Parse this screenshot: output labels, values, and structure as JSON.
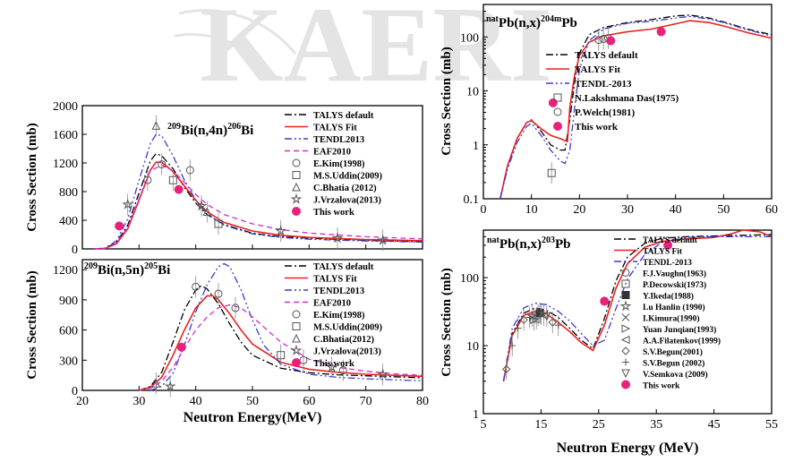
{
  "watermark": "KAERI",
  "watermark_color": "#e4e4e4",
  "chart_data": [
    {
      "id": "bi4n",
      "type": "line",
      "title_parts": [
        "209",
        "Bi(n,4n)",
        "206",
        "Bi"
      ],
      "xlabel": "",
      "ylabel": "Cross Section (mb)",
      "xlim": [
        20,
        80
      ],
      "ylim": [
        0,
        2000
      ],
      "xticks": [
        20,
        30,
        40,
        50,
        60,
        70,
        80
      ],
      "yticks": [
        0,
        400,
        800,
        1200,
        1600,
        2000
      ],
      "show_xticklabels": false,
      "series": [
        {
          "name": "TALYS default",
          "style": "dashdot",
          "color": "#000000",
          "x": [
            22,
            24,
            26,
            28,
            30,
            32,
            33,
            34,
            36,
            38,
            40,
            42,
            45,
            50,
            55,
            60,
            70,
            80
          ],
          "y": [
            0,
            10,
            90,
            330,
            780,
            1230,
            1330,
            1300,
            1120,
            860,
            640,
            480,
            340,
            220,
            170,
            150,
            120,
            100
          ]
        },
        {
          "name": "TALYS Fit",
          "style": "solid",
          "color": "#e8221f",
          "x": [
            22,
            24,
            26,
            28,
            30,
            32,
            33,
            34,
            36,
            38,
            40,
            42,
            45,
            50,
            55,
            60,
            70,
            80
          ],
          "y": [
            0,
            8,
            70,
            280,
            680,
            1100,
            1210,
            1210,
            1080,
            880,
            680,
            520,
            370,
            250,
            190,
            160,
            130,
            115
          ]
        },
        {
          "name": "TENDL2013",
          "style": "dashdotdot",
          "color": "#3b3bd0",
          "x": [
            22,
            24,
            26,
            28,
            30,
            32,
            33,
            34,
            36,
            38,
            40,
            42,
            45,
            50,
            55,
            60,
            70,
            80
          ],
          "y": [
            0,
            12,
            110,
            420,
            960,
            1470,
            1600,
            1580,
            1300,
            960,
            680,
            490,
            330,
            210,
            160,
            135,
            110,
            95
          ]
        },
        {
          "name": "EAF2010",
          "style": "dash",
          "color": "#d12ad1",
          "x": [
            22,
            24,
            26,
            28,
            30,
            32,
            34,
            36,
            38,
            40,
            42,
            45,
            50,
            55,
            60,
            70,
            80
          ],
          "y": [
            0,
            8,
            80,
            300,
            700,
            1090,
            1170,
            1090,
            930,
            760,
            620,
            480,
            350,
            270,
            220,
            170,
            140
          ]
        }
      ],
      "points": [
        {
          "label": "E.Kim(1998)",
          "marker": "circle",
          "color": "#555555",
          "x": [
            31.5,
            34,
            39
          ],
          "y": [
            960,
            1180,
            1100
          ]
        },
        {
          "label": "M.S.Uddin(2009)",
          "marker": "square",
          "color": "#555555",
          "x": [
            36,
            44
          ],
          "y": [
            960,
            350
          ]
        },
        {
          "label": "C.Bhatia (2012)",
          "marker": "triangle",
          "color": "#555555",
          "x": [
            33,
            42
          ],
          "y": [
            1720,
            520
          ]
        },
        {
          "label": "J.Vrzalova(2013)",
          "marker": "star",
          "color": "#555555",
          "x": [
            28,
            41,
            55,
            65,
            73
          ],
          "y": [
            620,
            600,
            250,
            150,
            120
          ]
        },
        {
          "label": "This work",
          "marker": "dot",
          "color": "#e8227a",
          "x": [
            26.5,
            37
          ],
          "y": [
            320,
            830
          ]
        }
      ]
    },
    {
      "id": "bi5n",
      "type": "line",
      "title_parts": [
        "209",
        "Bi(n,5n)",
        "205",
        "Bi"
      ],
      "xlabel": "Neutron Energy(MeV)",
      "ylabel": "Cross Section (mb)",
      "xlim": [
        20,
        80
      ],
      "ylim": [
        0,
        1300
      ],
      "xticks": [
        20,
        30,
        40,
        50,
        60,
        70,
        80
      ],
      "yticks": [
        0,
        300,
        600,
        900,
        1200
      ],
      "show_xticklabels": true,
      "series": [
        {
          "name": "TALYS default",
          "style": "dashdot",
          "color": "#000000",
          "x": [
            30,
            32,
            34,
            36,
            38,
            40,
            41,
            42,
            44,
            46,
            48,
            50,
            55,
            60,
            65,
            70,
            75,
            80
          ],
          "y": [
            0,
            40,
            180,
            480,
            800,
            1000,
            1040,
            1010,
            860,
            660,
            480,
            350,
            220,
            175,
            155,
            145,
            135,
            125
          ]
        },
        {
          "name": "TALYS Fit",
          "style": "solid",
          "color": "#e8221f",
          "x": [
            30,
            32,
            34,
            36,
            38,
            40,
            42,
            43,
            44,
            46,
            48,
            50,
            55,
            60,
            65,
            70,
            75,
            80
          ],
          "y": [
            0,
            30,
            130,
            350,
            600,
            820,
            940,
            940,
            900,
            760,
            600,
            460,
            280,
            210,
            180,
            160,
            150,
            140
          ]
        },
        {
          "name": "TENDL2013",
          "style": "dashdotdot",
          "color": "#3b3bd0",
          "x": [
            32,
            34,
            36,
            38,
            40,
            42,
            44,
            45,
            46,
            48,
            50,
            52,
            55,
            60,
            65,
            70,
            75,
            80
          ],
          "y": [
            0,
            40,
            170,
            450,
            780,
            1050,
            1230,
            1260,
            1230,
            1000,
            700,
            450,
            260,
            160,
            130,
            115,
            105,
            95
          ]
        },
        {
          "name": "EAF2010",
          "style": "dash",
          "color": "#d12ad1",
          "x": [
            30,
            32,
            34,
            36,
            38,
            40,
            42,
            44,
            46,
            48,
            50,
            55,
            60,
            65,
            70,
            75,
            80
          ],
          "y": [
            0,
            20,
            90,
            230,
            420,
            600,
            730,
            820,
            850,
            820,
            730,
            480,
            310,
            230,
            190,
            165,
            150
          ]
        }
      ],
      "points": [
        {
          "label": "E.Kim(1998)",
          "marker": "circle",
          "color": "#555555",
          "x": [
            40,
            44,
            47,
            59,
            66
          ],
          "y": [
            1030,
            960,
            820,
            300,
            200
          ]
        },
        {
          "label": "M.S.Uddin(2009)",
          "marker": "square",
          "color": "#555555",
          "x": [
            55
          ],
          "y": [
            350
          ]
        },
        {
          "label": "C.Bhatia(2012)",
          "marker": "triangle",
          "color": "#555555",
          "x": [
            33
          ],
          "y": [
            70
          ]
        },
        {
          "label": "J.Vrzalova(2013)",
          "marker": "star",
          "color": "#555555",
          "x": [
            35.5,
            64,
            73
          ],
          "y": [
            40,
            230,
            160
          ]
        },
        {
          "label": "This work",
          "marker": "dot",
          "color": "#e8227a",
          "x": [
            37.5
          ],
          "y": [
            430
          ]
        }
      ]
    },
    {
      "id": "pb204",
      "type": "line",
      "title_parts": [
        "nat",
        "Pb(n,x)",
        "204m",
        "Pb"
      ],
      "xlabel": "",
      "ylabel": "Cross Section (mb)",
      "xscale": "linear",
      "yscale": "log",
      "xlim": [
        0,
        60
      ],
      "ylim": [
        0.1,
        400
      ],
      "xticks": [
        0,
        10,
        20,
        30,
        40,
        50,
        60
      ],
      "yticks": [
        0.1,
        1,
        10,
        100
      ],
      "ytick_labels": [
        "0.1",
        "1",
        "10",
        "100"
      ],
      "show_xticklabels": true,
      "series": [
        {
          "name": "TALYS default",
          "style": "dashdot",
          "color": "#000000",
          "x": [
            3.5,
            5,
            7,
            9,
            10,
            12,
            14,
            16,
            17,
            18,
            19,
            20,
            22,
            25,
            30,
            35,
            40,
            43,
            47,
            50,
            55,
            60
          ],
          "y": [
            0.1,
            0.4,
            1.3,
            2.6,
            2.9,
            1.8,
            1.0,
            0.8,
            0.8,
            3,
            15,
            50,
            110,
            150,
            185,
            210,
            245,
            255,
            225,
            190,
            140,
            110
          ]
        },
        {
          "name": "TALYS Fit",
          "style": "solid",
          "color": "#e8221f",
          "x": [
            3.5,
            5,
            7,
            9,
            10,
            12,
            14,
            16,
            17.5,
            18,
            19,
            20,
            22,
            25,
            30,
            35,
            40,
            43,
            47,
            50,
            55,
            60
          ],
          "y": [
            0.1,
            0.4,
            1.3,
            2.6,
            2.8,
            2.0,
            1.5,
            1.3,
            1.15,
            5,
            20,
            45,
            80,
            105,
            125,
            140,
            175,
            200,
            185,
            160,
            120,
            95
          ]
        },
        {
          "name": "TENDL-2013",
          "style": "dashdotdot",
          "color": "#3b3bd0",
          "x": [
            3.5,
            5,
            7,
            9,
            10,
            12,
            14,
            16,
            17,
            18,
            19,
            20,
            22,
            25,
            30,
            35,
            40,
            43,
            47,
            50,
            55,
            60
          ],
          "y": [
            0.1,
            0.35,
            1.1,
            2.2,
            2.5,
            1.5,
            0.8,
            0.5,
            0.45,
            0.8,
            5,
            25,
            85,
            140,
            180,
            195,
            225,
            240,
            215,
            185,
            135,
            105
          ]
        }
      ],
      "points": [
        {
          "label": "N.Lakshmana Das(1975)",
          "marker": "square",
          "color": "#555555",
          "x": [
            14.2
          ],
          "y": [
            0.3
          ]
        },
        {
          "label": "P.Welch(1981)",
          "marker": "circle",
          "color": "#555555",
          "x": [
            24,
            25,
            26
          ],
          "y": [
            88,
            92,
            95
          ]
        },
        {
          "label": "This work",
          "marker": "dot",
          "color": "#e8227a",
          "x": [
            14.5,
            26.5,
            37
          ],
          "y": [
            6,
            85,
            125
          ]
        }
      ]
    },
    {
      "id": "pb203",
      "type": "line",
      "title_parts": [
        "nat",
        "Pb(n,x)",
        "203",
        "Pb"
      ],
      "xlabel": "Neutron Energy (MeV)",
      "ylabel": "Cross Section (mb)",
      "xscale": "linear",
      "yscale": "log",
      "xlim": [
        5,
        55
      ],
      "ylim": [
        1,
        500
      ],
      "xticks": [
        5,
        15,
        25,
        35,
        45,
        55
      ],
      "yticks": [
        1,
        10,
        100
      ],
      "ytick_labels": [
        "1",
        "10",
        "100"
      ],
      "show_xticklabels": true,
      "series": [
        {
          "name": "TALYS default",
          "style": "dashdot",
          "color": "#000000",
          "x": [
            8.5,
            10,
            12,
            14,
            16,
            18,
            20,
            22,
            24,
            26,
            28,
            30,
            33,
            36,
            40,
            45,
            50,
            55
          ],
          "y": [
            3,
            15,
            30,
            36,
            33,
            26,
            18,
            12,
            9,
            25,
            90,
            200,
            320,
            380,
            400,
            410,
            420,
            430
          ]
        },
        {
          "name": "TALYS Fit",
          "style": "solid",
          "color": "#e8221f",
          "x": [
            8.5,
            10,
            12,
            14,
            16,
            18,
            20,
            22,
            24,
            26,
            28,
            30,
            33,
            36,
            40,
            45,
            48,
            50,
            53,
            55
          ],
          "y": [
            3,
            14,
            28,
            32,
            29,
            22,
            16,
            11,
            8.5,
            20,
            70,
            160,
            280,
            340,
            370,
            390,
            440,
            500,
            470,
            400
          ]
        },
        {
          "name": "TENDL-2013",
          "style": "dashdotdot",
          "color": "#3b3bd0",
          "x": [
            8.5,
            10,
            12,
            14,
            16,
            18,
            20,
            22,
            24,
            26,
            28,
            30,
            33,
            36,
            40,
            45,
            50,
            55
          ],
          "y": [
            3,
            18,
            36,
            42,
            40,
            32,
            23,
            15,
            10,
            12,
            35,
            95,
            220,
            330,
            390,
            400,
            400,
            400
          ]
        }
      ],
      "points": [
        {
          "label": "F.J.Vaughn(1963)",
          "marker": "circle",
          "color": "#555555",
          "x": [
            14.5
          ],
          "y": [
            28
          ]
        },
        {
          "label": "P.Decowski(1973)",
          "marker": "square",
          "color": "#555555",
          "x": [
            14.2
          ],
          "y": [
            25
          ]
        },
        {
          "label": "Y.Ikeda(1988)",
          "marker": "fsquare",
          "color": "#333333",
          "x": [
            14.8
          ],
          "y": [
            30
          ]
        },
        {
          "label": "Lu Hanlin (1990)",
          "marker": "star",
          "color": "#555555",
          "x": [
            13.5
          ],
          "y": [
            27
          ]
        },
        {
          "label": "I.Kimura(1990)",
          "marker": "cross",
          "color": "#555555",
          "x": [
            15
          ],
          "y": [
            29
          ]
        },
        {
          "label": "Yuan Junqian(1993)",
          "marker": "tright",
          "color": "#555555",
          "x": [
            13.8
          ],
          "y": [
            24
          ]
        },
        {
          "label": "A.A.Filatenkov(1999)",
          "marker": "tleft",
          "color": "#555555",
          "x": [
            15.5
          ],
          "y": [
            28
          ]
        },
        {
          "label": "S.V.Begun(2001)",
          "marker": "diamond",
          "color": "#555555",
          "x": [
            9,
            12,
            17
          ],
          "y": [
            4.5,
            24,
            22
          ]
        },
        {
          "label": "S.V.Begun (2002)",
          "marker": "plus",
          "color": "#555555",
          "x": [
            10,
            11,
            13,
            18
          ],
          "y": [
            10,
            18,
            26,
            20
          ]
        },
        {
          "label": "V.Semkova (2009)",
          "marker": "tdown",
          "color": "#555555",
          "x": [
            16
          ],
          "y": [
            27
          ]
        },
        {
          "label": "This work",
          "marker": "dot",
          "color": "#e8227a",
          "x": [
            26,
            37
          ],
          "y": [
            45,
            300
          ]
        }
      ]
    }
  ]
}
